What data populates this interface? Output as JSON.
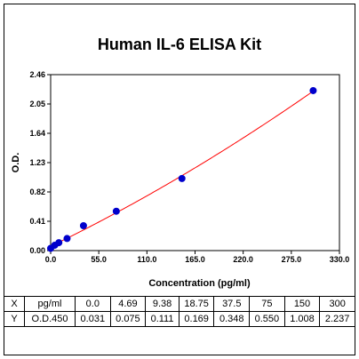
{
  "chart_data": {
    "type": "scatter",
    "title": "Human IL-6 ELISA Kit",
    "xlabel": "Concentration (pg/ml)",
    "ylabel": "O.D.",
    "xlim": [
      0,
      330
    ],
    "ylim": [
      0,
      2.46
    ],
    "x_ticks": [
      "0.0",
      "55.0",
      "110.0",
      "165.0",
      "220.0",
      "275.0",
      "330.0"
    ],
    "y_ticks": [
      "0.00",
      "0.41",
      "0.82",
      "1.23",
      "1.64",
      "2.05",
      "2.46"
    ],
    "x": [
      0.0,
      4.69,
      9.38,
      18.75,
      37.5,
      75,
      150,
      300
    ],
    "y": [
      0.031,
      0.075,
      0.111,
      0.169,
      0.348,
      0.55,
      1.008,
      2.237
    ],
    "point_color": "#0000cc",
    "fit_color": "#ff0000",
    "fit": "curve"
  },
  "table": {
    "rows": [
      [
        "X",
        "pg/ml",
        "0.0",
        "4.69",
        "9.38",
        "18.75",
        "37.5",
        "75",
        "150",
        "300"
      ],
      [
        "Y",
        "O.D.450",
        "0.031",
        "0.075",
        "0.111",
        "0.169",
        "0.348",
        "0.550",
        "1.008",
        "2.237"
      ]
    ]
  }
}
